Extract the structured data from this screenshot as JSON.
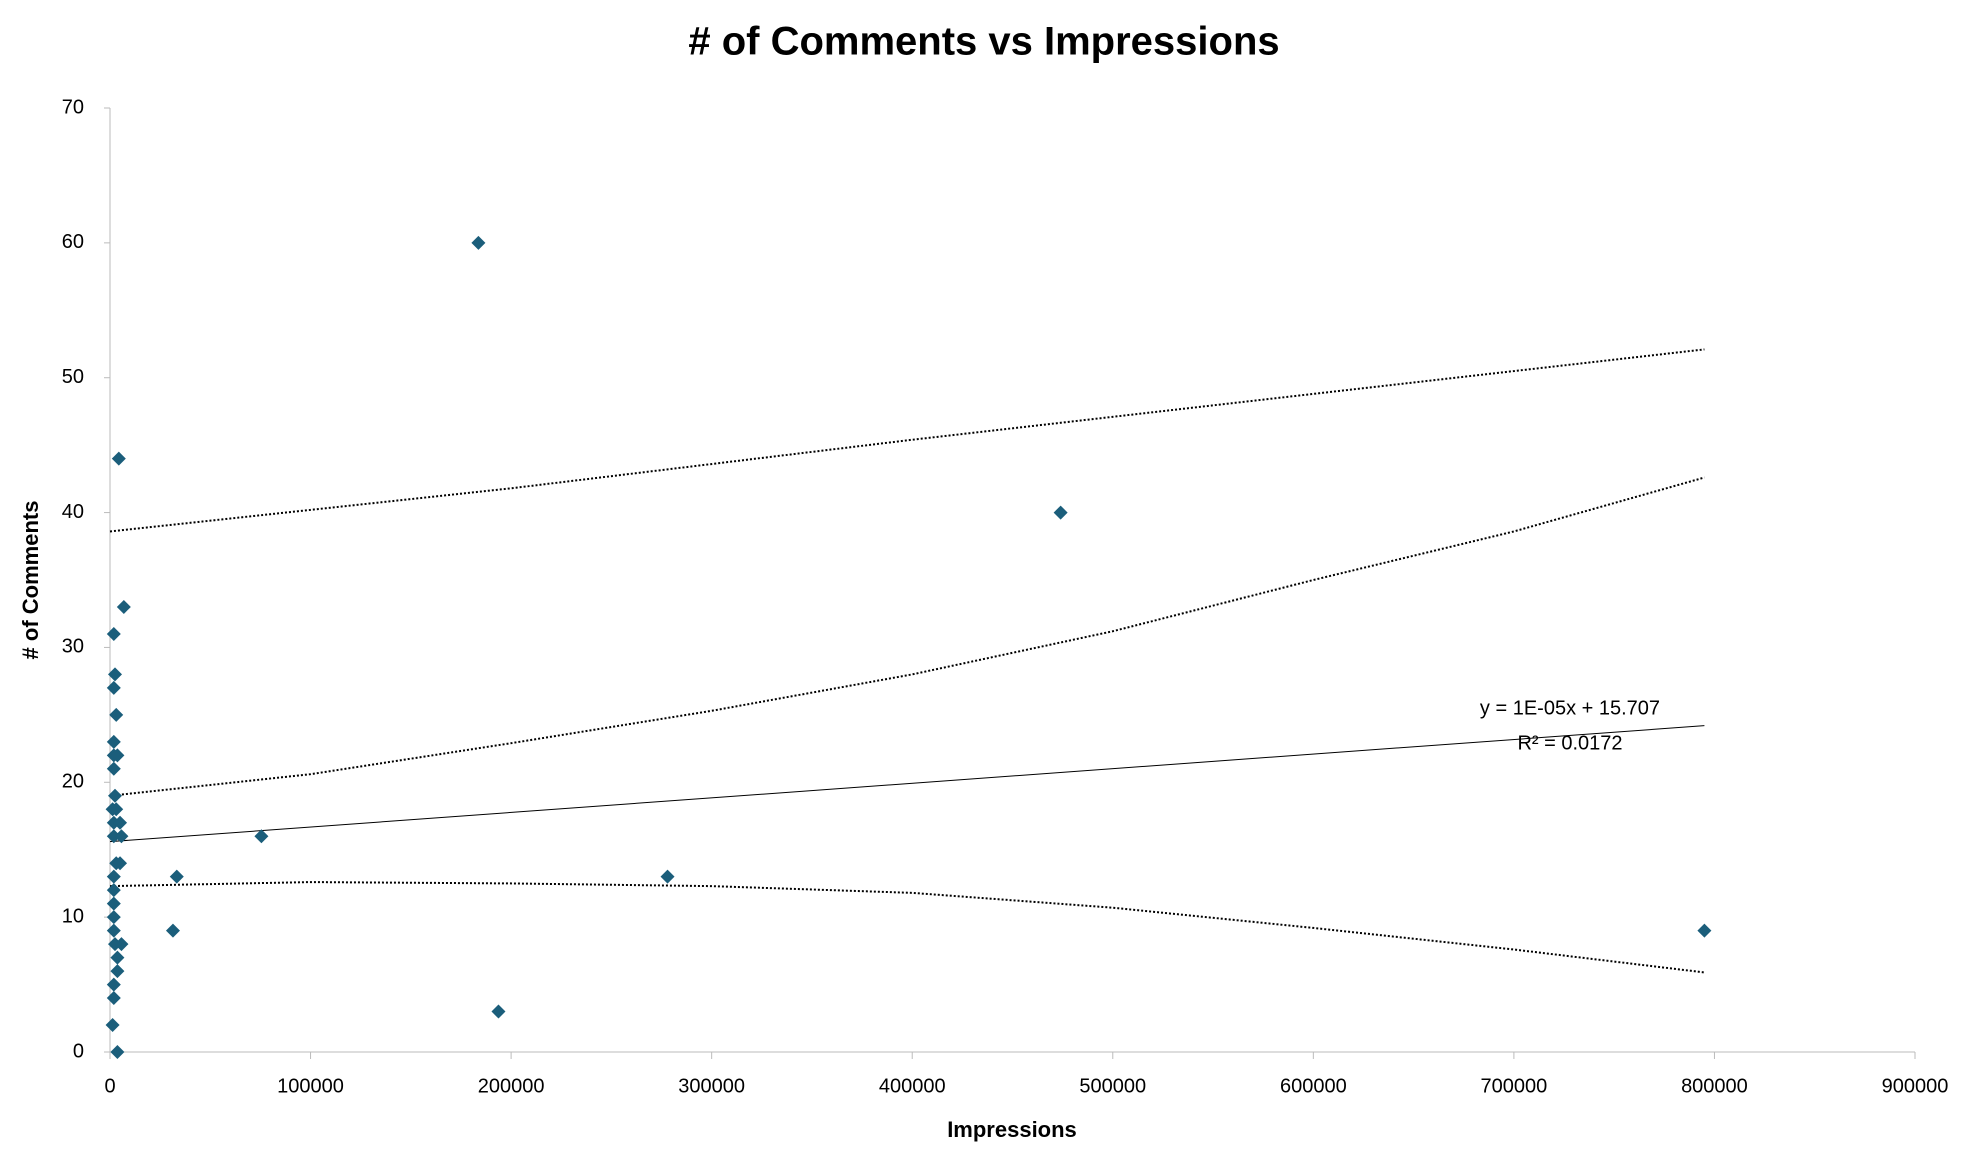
{
  "chart_data": {
    "type": "scatter",
    "title": "# of Comments vs Impressions",
    "x_label": "Impressions",
    "y_label": "# of Comments",
    "color": "#1b5e7b",
    "xlim": [
      0,
      900000
    ],
    "ylim": [
      0,
      70
    ],
    "xticks": [
      0,
      100000,
      200000,
      300000,
      400000,
      500000,
      600000,
      700000,
      800000,
      900000
    ],
    "yticks": [
      0,
      10,
      20,
      30,
      40,
      50,
      60,
      70
    ],
    "grid": false,
    "x": [
      183700,
      4400,
      474000,
      6900,
      1900,
      2500,
      1900,
      3100,
      1900,
      1900,
      3700,
      1900,
      2500,
      3100,
      1300,
      1900,
      5000,
      1900,
      5700,
      75500,
      33300,
      278000,
      3100,
      5000,
      1900,
      1900,
      1900,
      1900,
      1900,
      31400,
      795000,
      5700,
      2500,
      3700,
      3700,
      1900,
      1900,
      1300,
      3700,
      193700
    ],
    "y": [
      60,
      44,
      40,
      33,
      31,
      28,
      27,
      25,
      23,
      22,
      22,
      21,
      19,
      18,
      18,
      17,
      17,
      16,
      16,
      16,
      13,
      13,
      14,
      14,
      13,
      12,
      11,
      10,
      9,
      9,
      9,
      8,
      8,
      7,
      6,
      5,
      4,
      2,
      0,
      3
    ],
    "lines": [
      {
        "style": "solid",
        "x": [
          0,
          795000
        ],
        "values": [
          15.6,
          24.2
        ]
      },
      {
        "style": "dotted",
        "x": [
          0,
          200000,
          400000,
          600000,
          795000
        ],
        "values": [
          38.6,
          41.8,
          45.4,
          48.8,
          52.1
        ]
      },
      {
        "style": "dotted",
        "x": [
          0,
          100000,
          200000,
          300000,
          400000,
          500000,
          600000,
          700000,
          795000
        ],
        "values": [
          19.0,
          20.6,
          22.9,
          25.3,
          28.0,
          31.2,
          35.0,
          38.6,
          42.6
        ]
      },
      {
        "style": "dotted",
        "x": [
          0,
          100000,
          200000,
          300000,
          400000,
          500000,
          600000,
          700000,
          795000
        ],
        "values": [
          12.3,
          12.6,
          12.5,
          12.3,
          11.8,
          10.7,
          9.2,
          7.6,
          5.9
        ]
      }
    ],
    "annotations": [
      "y = 1E-05x + 15.707",
      "R² = 0.0172"
    ]
  }
}
